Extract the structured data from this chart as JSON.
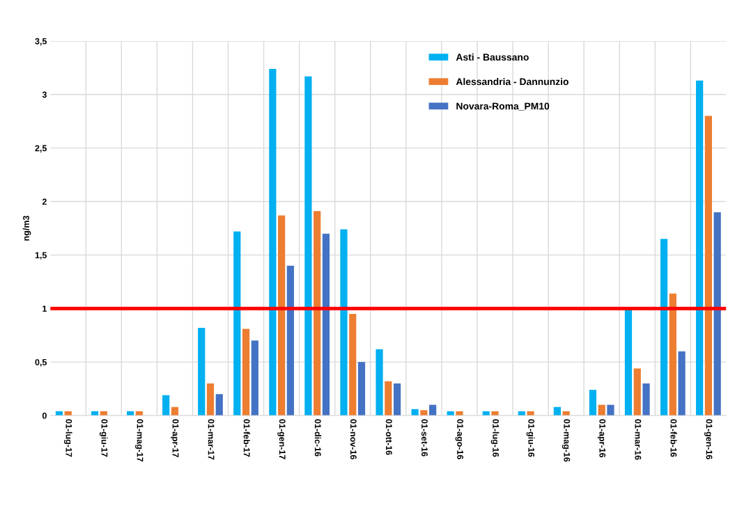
{
  "chart_data": {
    "type": "bar",
    "ylabel": "ng/m3",
    "categories": [
      "01-lug-17",
      "01-giu-17",
      "01-mag-17",
      "01-apr-17",
      "01-mar-17",
      "01-feb-17",
      "01-gen-17",
      "01-dic-16",
      "01-nov-16",
      "01-ott-16",
      "01-set-16",
      "01-ago-16",
      "01-lug-16",
      "01-giu-16",
      "01-mag-16",
      "01-apr-16",
      "01-mar-16",
      "01-feb-16",
      "01-gen-16"
    ],
    "series": [
      {
        "name": "Asti - Baussano",
        "color": "#00b0f0",
        "values": [
          0.04,
          0.04,
          0.04,
          0.19,
          0.82,
          1.72,
          3.24,
          3.17,
          1.74,
          0.62,
          0.06,
          0.04,
          0.04,
          0.04,
          0.08,
          0.24,
          0.99,
          1.65,
          3.13
        ]
      },
      {
        "name": "Alessandria - Dannunzio",
        "color": "#ed7d31",
        "values": [
          0.04,
          0.04,
          0.04,
          0.08,
          0.3,
          0.81,
          1.87,
          1.91,
          0.95,
          0.32,
          0.05,
          0.04,
          0.04,
          0.04,
          0.04,
          0.1,
          0.44,
          1.14,
          2.8
        ]
      },
      {
        "name": "Novara-Roma_PM10",
        "color": "#4472c4",
        "values": [
          null,
          null,
          null,
          null,
          0.2,
          0.7,
          1.4,
          1.7,
          0.5,
          0.3,
          0.1,
          null,
          null,
          null,
          null,
          0.1,
          0.3,
          0.6,
          1.9
        ]
      }
    ],
    "ylim": [
      0,
      3.5
    ],
    "yticks": [
      0,
      {
        "value": 0.5,
        "label": "0,5"
      },
      1,
      {
        "value": 1.5,
        "label": "1,5"
      },
      2,
      {
        "value": 2.5,
        "label": "2,5"
      },
      3,
      {
        "value": 3.5,
        "label": "3,5"
      }
    ],
    "ref_lines": [
      {
        "axis": "y",
        "value": 1,
        "color": "#ff0000"
      }
    ],
    "grid": true,
    "legend": "top right"
  }
}
